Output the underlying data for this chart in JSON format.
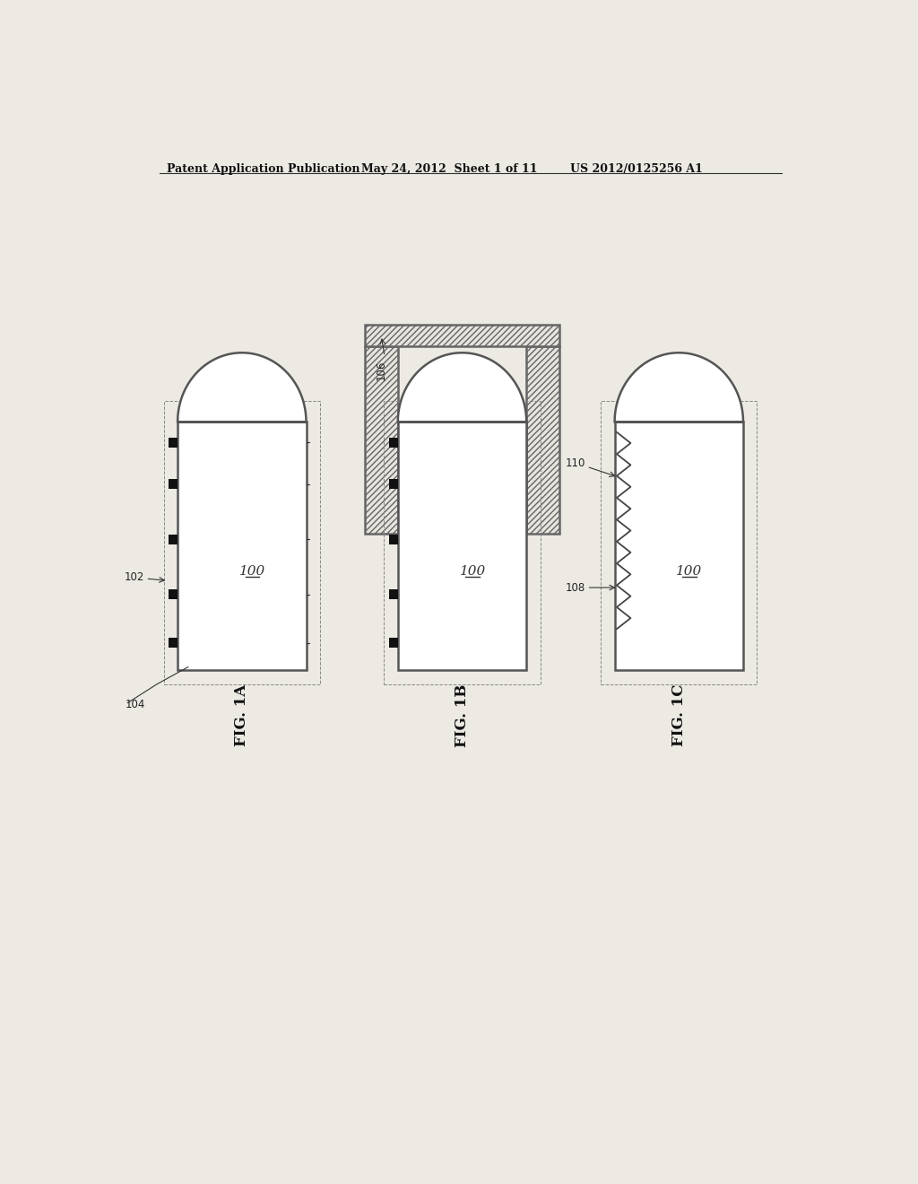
{
  "header_left": "Patent Application Publication",
  "header_mid": "May 24, 2012  Sheet 1 of 11",
  "header_right": "US 2012/0125256 A1",
  "fig1a_label": "FIG. 1A",
  "fig1b_label": "FIG. 1B",
  "fig1c_label": "FIG. 1C",
  "label_100a": "100",
  "label_100b": "100",
  "label_100c": "100",
  "label_102": "102",
  "label_104": "104",
  "label_106": "106",
  "label_108": "108",
  "label_110": "110",
  "bg_color": "#edeae4",
  "line_color": "#444444",
  "border_color": "#555555"
}
